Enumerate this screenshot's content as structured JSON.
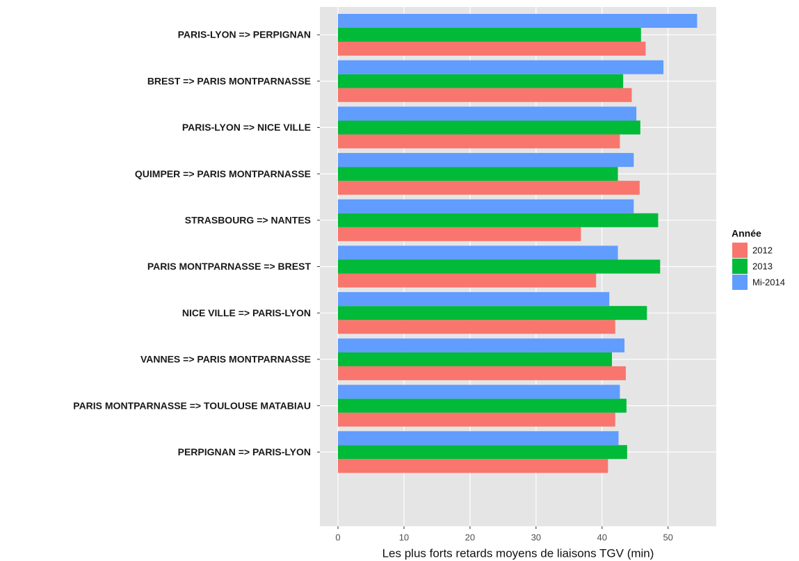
{
  "chart_data": {
    "type": "bar",
    "orientation": "horizontal",
    "x_label": "Les plus forts retards moyens de liaisons TGV (min)",
    "legend_title": "Année",
    "categories": [
      "PARIS-LYON  =>  PERPIGNAN",
      "BREST  =>  PARIS MONTPARNASSE",
      "PARIS-LYON  =>  NICE VILLE",
      "QUIMPER  =>  PARIS MONTPARNASSE",
      "STRASBOURG  =>  NANTES",
      "PARIS MONTPARNASSE  =>  BREST",
      "NICE VILLE  =>  PARIS-LYON",
      "VANNES  =>  PARIS MONTPARNASSE",
      "PARIS MONTPARNASSE  =>  TOULOUSE MATABIAU",
      "PERPIGNAN  =>  PARIS-LYON"
    ],
    "series": [
      {
        "name": "2012",
        "color": "#F8766D",
        "values": [
          46.6,
          44.5,
          42.7,
          45.7,
          36.8,
          39.1,
          42.0,
          43.6,
          42.0,
          40.9
        ]
      },
      {
        "name": "2013",
        "color": "#00BA38",
        "values": [
          45.9,
          43.2,
          45.8,
          42.4,
          48.5,
          48.8,
          46.8,
          41.5,
          43.7,
          43.8
        ]
      },
      {
        "name": "Mi-2014",
        "color": "#619CFF",
        "values": [
          54.4,
          49.3,
          45.2,
          44.8,
          44.8,
          42.4,
          41.1,
          43.4,
          42.7,
          42.5
        ]
      }
    ],
    "xlim": [
      -2.74,
      57.3
    ],
    "xticks": [
      0,
      10,
      20,
      30,
      40,
      50
    ],
    "grid": true,
    "legend": "right"
  }
}
